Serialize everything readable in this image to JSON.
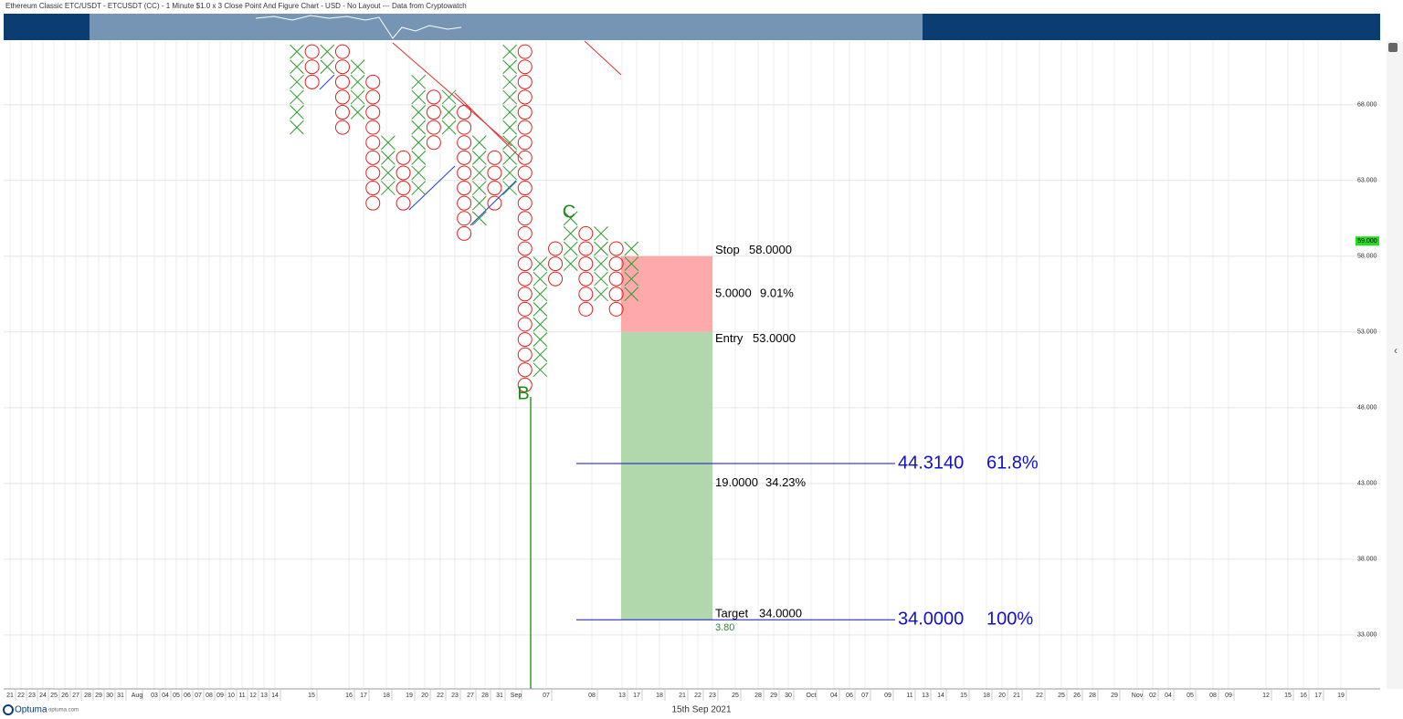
{
  "chart_data": {
    "type": "point_and_figure",
    "title": "Ethereum Classic ETC/USDT - ETCUSDT (CC) - 1 Minute $1.0 x 3 Close Point And Figure Chart - USD - No Layout --- Data from Cryptowatch",
    "x_color": "#2e9a2e",
    "o_color": "#e02020",
    "columns": [
      {
        "kind": "X",
        "low": 66,
        "high": 71
      },
      {
        "kind": "O",
        "low": 69,
        "high": 71
      },
      {
        "kind": "X",
        "low": 70,
        "high": 71
      },
      {
        "kind": "O",
        "low": 66,
        "high": 71
      },
      {
        "kind": "X",
        "low": 67,
        "high": 70
      },
      {
        "kind": "O",
        "low": 61,
        "high": 69
      },
      {
        "kind": "X",
        "low": 62,
        "high": 65
      },
      {
        "kind": "O",
        "low": 61,
        "high": 64
      },
      {
        "kind": "X",
        "low": 62,
        "high": 69
      },
      {
        "kind": "O",
        "low": 65,
        "high": 68
      },
      {
        "kind": "X",
        "low": 66,
        "high": 68
      },
      {
        "kind": "O",
        "low": 59,
        "high": 67
      },
      {
        "kind": "X",
        "low": 60,
        "high": 65
      },
      {
        "kind": "O",
        "low": 61,
        "high": 64
      },
      {
        "kind": "X",
        "low": 62,
        "high": 71
      },
      {
        "kind": "O",
        "low": 49,
        "high": 71
      },
      {
        "kind": "X",
        "low": 50,
        "high": 57
      },
      {
        "kind": "O",
        "low": 56,
        "high": 58
      },
      {
        "kind": "X",
        "low": 57,
        "high": 60
      },
      {
        "kind": "O",
        "low": 54,
        "high": 59
      },
      {
        "kind": "X",
        "low": 55,
        "high": 59
      },
      {
        "kind": "O",
        "low": 54,
        "high": 58
      },
      {
        "kind": "X",
        "low": 55,
        "high": 58
      }
    ],
    "ylim": [
      29.5,
      72.2
    ],
    "yticks": [
      {
        "value": 68,
        "label": "68.000"
      },
      {
        "value": 63,
        "label": "63.000"
      },
      {
        "value": 58,
        "label": "58.000"
      },
      {
        "value": 53,
        "label": "53.000"
      },
      {
        "value": 48,
        "label": "48.000"
      },
      {
        "value": 43,
        "label": "43.000"
      },
      {
        "value": 38,
        "label": "38.000"
      },
      {
        "value": 33,
        "label": "33.000"
      }
    ],
    "grid": true,
    "last_price": {
      "value": 59,
      "label": "59.000"
    },
    "x_labels": [
      "21",
      "22",
      "23",
      "24",
      "25",
      "26",
      "27",
      "28",
      "29",
      "30",
      "31",
      "Aug",
      "03",
      "04",
      "05",
      "06",
      "07",
      "08",
      "09",
      "10",
      "11",
      "12",
      "13",
      "14",
      "15",
      "16",
      "17",
      "18",
      "19",
      "20",
      "22",
      "23",
      "27",
      "28",
      "31",
      "Sep",
      "07",
      "08",
      "13",
      "17",
      "18",
      "21",
      "22",
      "23",
      "25",
      "28",
      "29",
      "30",
      "Oct",
      "04",
      "06",
      "07",
      "09",
      "11",
      "13",
      "14",
      "15",
      "18",
      "20",
      "21",
      "22",
      "25",
      "26",
      "28",
      "29",
      "Nov",
      "02",
      "04",
      "05",
      "08",
      "09",
      "12",
      "15",
      "16",
      "17",
      "19"
    ],
    "date_caption": "15th Sep 2021",
    "points": [
      {
        "label": "B"
      },
      {
        "label": "C"
      }
    ],
    "trade": {
      "stop": {
        "label": "Stop",
        "value": 58,
        "value_label": "58.0000"
      },
      "risk": {
        "amount": "5.0000",
        "percent": "9.01%"
      },
      "entry": {
        "label": "Entry",
        "value": 53,
        "value_label": "53.0000"
      },
      "reward": {
        "amount": "19.0000",
        "percent": "34.23%"
      },
      "target": {
        "label": "Target",
        "value": 34,
        "value_label": "34.0000"
      },
      "ratio": "3.80"
    },
    "fib_levels": [
      {
        "value": 44.314,
        "value_label": "44.3140",
        "percent": "61.8%"
      },
      {
        "value": 34,
        "value_label": "34.0000",
        "percent": "100%"
      }
    ],
    "brand": "Optuma",
    "brand_url": "optuma.com"
  }
}
